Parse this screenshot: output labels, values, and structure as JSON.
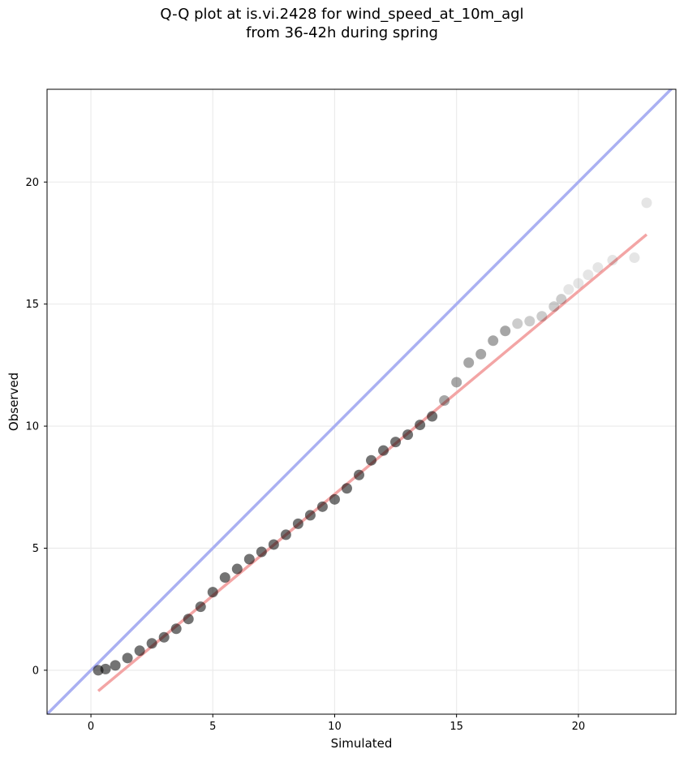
{
  "chart_data": {
    "type": "scatter",
    "title_line1": "Q-Q plot at is.vi.2428 for wind_speed_at_10m_agl",
    "title_line2": "from 36-42h during spring",
    "xlabel": "Simulated",
    "ylabel": "Observed",
    "xlim": [
      -1.8,
      24.0
    ],
    "ylim": [
      -1.8,
      23.8
    ],
    "x_ticks": [
      0,
      5,
      10,
      15,
      20
    ],
    "y_ticks": [
      0,
      5,
      10,
      15,
      20
    ],
    "grid": true,
    "colors": {
      "points": "#000000",
      "identity_line": "#aab0f2",
      "fit_line": "#f3a5a5",
      "grid": "#ebebeb"
    },
    "identity_line": {
      "name": "",
      "x": [
        -1.8,
        24.0
      ],
      "y": [
        -1.8,
        24.0
      ]
    },
    "fit_line": {
      "name": "",
      "x": [
        0.3,
        22.8
      ],
      "y": [
        -0.85,
        17.85
      ]
    },
    "quantiles": {
      "x": [
        0.3,
        0.6,
        1.0,
        1.5,
        2.0,
        2.5,
        3.0,
        3.5,
        4.0,
        4.5,
        5.0,
        5.5,
        6.0,
        6.5,
        7.0,
        7.5,
        8.0,
        8.5,
        9.0,
        9.5,
        10.0,
        10.5,
        11.0,
        11.5,
        12.0,
        12.5,
        13.0,
        13.5,
        14.0,
        14.5,
        15.0,
        15.5,
        16.0,
        16.5,
        17.0,
        17.5,
        18.0,
        18.5,
        19.0,
        19.3,
        19.6,
        20.0,
        20.4,
        20.8,
        21.4,
        22.3,
        22.8
      ],
      "y": [
        0.0,
        0.05,
        0.2,
        0.5,
        0.8,
        1.1,
        1.35,
        1.7,
        2.1,
        2.6,
        3.2,
        3.8,
        4.15,
        4.55,
        4.85,
        5.15,
        5.55,
        6.0,
        6.35,
        6.7,
        7.0,
        7.45,
        8.0,
        8.6,
        9.0,
        9.35,
        9.65,
        10.05,
        10.4,
        11.05,
        11.8,
        12.6,
        12.95,
        13.5,
        13.9,
        14.2,
        14.3,
        14.5,
        14.9,
        15.2,
        15.6,
        15.85,
        16.2,
        16.5,
        16.8,
        16.9,
        19.15
      ]
    }
  }
}
